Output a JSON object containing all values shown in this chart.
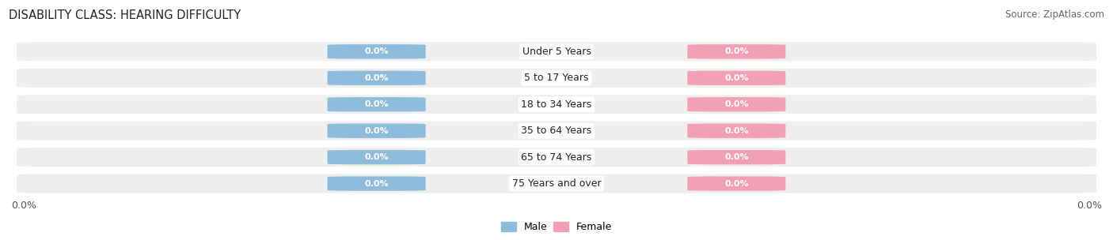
{
  "title": "DISABILITY CLASS: HEARING DIFFICULTY",
  "source_text": "Source: ZipAtlas.com",
  "categories": [
    "Under 5 Years",
    "5 to 17 Years",
    "18 to 34 Years",
    "35 to 64 Years",
    "65 to 74 Years",
    "75 Years and over"
  ],
  "male_values": [
    0.0,
    0.0,
    0.0,
    0.0,
    0.0,
    0.0
  ],
  "female_values": [
    0.0,
    0.0,
    0.0,
    0.0,
    0.0,
    0.0
  ],
  "male_color": "#8fbcdb",
  "female_color": "#f2a0b5",
  "row_bg_color": "#efefef",
  "title_fontsize": 10.5,
  "source_fontsize": 8.5,
  "tick_fontsize": 9,
  "label_fontsize": 8,
  "category_fontsize": 9
}
